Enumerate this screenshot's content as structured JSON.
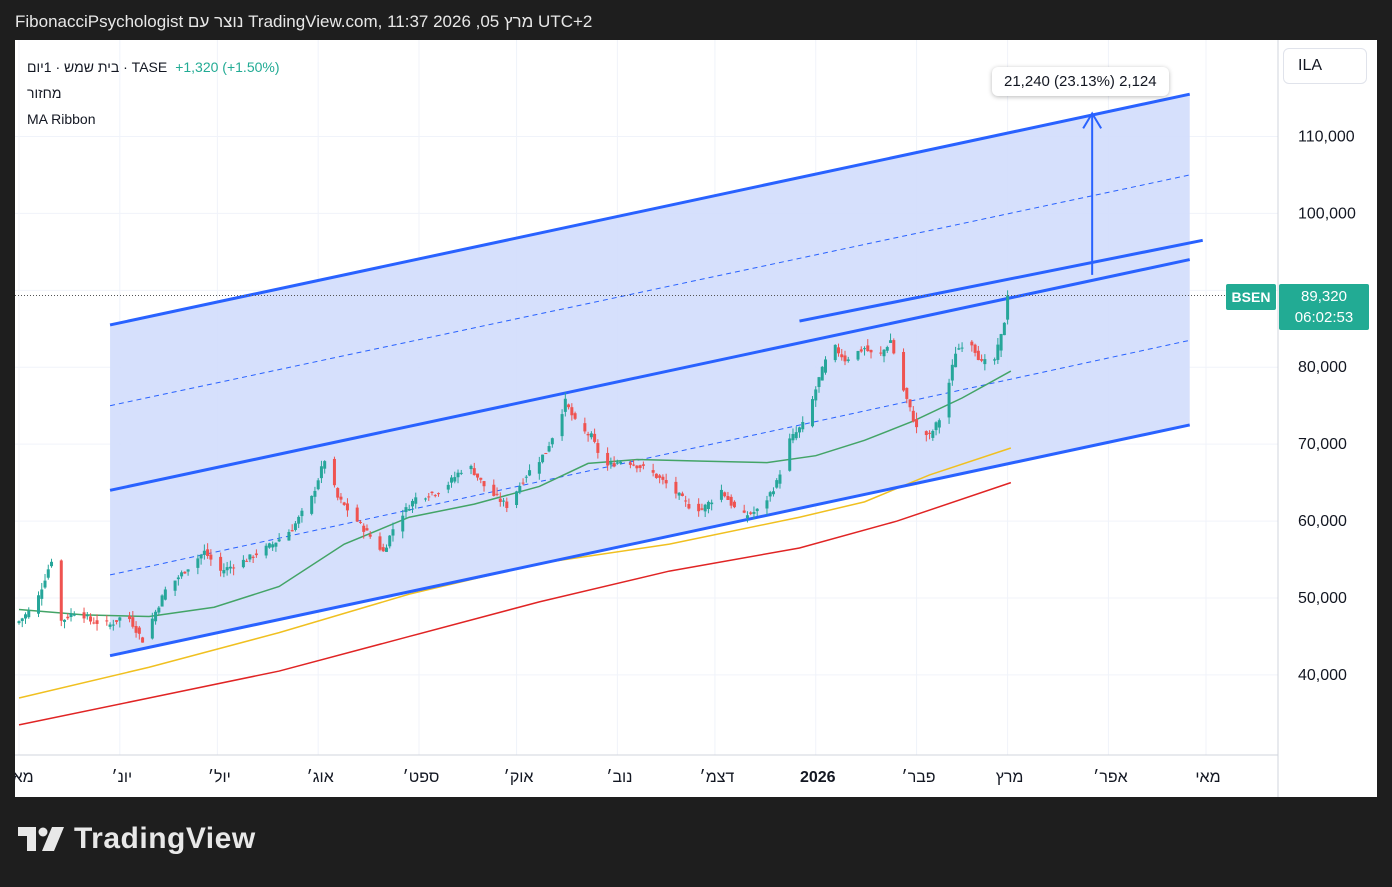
{
  "header": {
    "caption": "FibonacciPsychologist נוצר עם TradingView.com, 11:37 2026 ,05 מרץ UTC+2"
  },
  "legend": {
    "symbol_line": "בית שמש · 1יום · TASE",
    "change": "+1,320 (+1.50%)",
    "volume_label": "מחזור",
    "indicator": "MA Ribbon"
  },
  "currency_button": "ILA",
  "measure_label": "21,240 (23.13%) 2,124",
  "price_tag": {
    "symbol": "BSEN",
    "price": "89,320",
    "countdown": "06:02:53"
  },
  "colors": {
    "up": "#26a69a",
    "down": "#ef5350",
    "channel": "#2962ff",
    "channel_fill": "#d2ddfc",
    "ma_green": "#43a467",
    "ma_yellow": "#f0c020",
    "ma_red": "#e02424"
  },
  "chart_data": {
    "type": "candlestick",
    "yticks": [
      40000,
      50000,
      60000,
      70000,
      80000,
      90000,
      100000,
      110000
    ],
    "ytick_labels": [
      "40,000",
      "50,000",
      "60,000",
      "70,000",
      "80,000",
      "",
      "100,000",
      "110,000"
    ],
    "xticks": [
      {
        "label": "מאי",
        "day": 0,
        "bold": false
      },
      {
        "label": "יונ׳",
        "day": 31,
        "bold": false
      },
      {
        "label": "יול׳",
        "day": 61,
        "bold": false
      },
      {
        "label": "אוג׳",
        "day": 92,
        "bold": false
      },
      {
        "label": "ספט׳",
        "day": 123,
        "bold": false
      },
      {
        "label": "אוק׳",
        "day": 153,
        "bold": false
      },
      {
        "label": "נוב׳",
        "day": 184,
        "bold": false
      },
      {
        "label": "דצמ׳",
        "day": 214,
        "bold": false
      },
      {
        "label": "2026",
        "day": 245,
        "bold": true
      },
      {
        "label": "פבר׳",
        "day": 276,
        "bold": false
      },
      {
        "label": "מרץ",
        "day": 304,
        "bold": false
      },
      {
        "label": "אפר׳",
        "day": 335,
        "bold": false
      },
      {
        "label": "מאי",
        "day": 365,
        "bold": false
      }
    ],
    "last_price": 89320,
    "price_anchors": [
      [
        0,
        47000
      ],
      [
        5,
        49000
      ],
      [
        10,
        55000
      ],
      [
        13,
        47000
      ],
      [
        18,
        48500
      ],
      [
        22,
        47000
      ],
      [
        28,
        46500
      ],
      [
        33,
        48000
      ],
      [
        38,
        44500
      ],
      [
        45,
        51000
      ],
      [
        52,
        54000
      ],
      [
        57,
        56000
      ],
      [
        62,
        53500
      ],
      [
        70,
        55000
      ],
      [
        78,
        57000
      ],
      [
        84,
        59000
      ],
      [
        90,
        63000
      ],
      [
        94,
        68000
      ],
      [
        98,
        63000
      ],
      [
        102,
        61000
      ],
      [
        108,
        58000
      ],
      [
        112,
        56000
      ],
      [
        116,
        60000
      ],
      [
        122,
        63000
      ],
      [
        130,
        64000
      ],
      [
        138,
        67500
      ],
      [
        144,
        64000
      ],
      [
        150,
        62000
      ],
      [
        156,
        66000
      ],
      [
        162,
        69000
      ],
      [
        165,
        72000
      ],
      [
        168,
        75500
      ],
      [
        172,
        72000
      ],
      [
        176,
        71000
      ],
      [
        180,
        67000
      ],
      [
        186,
        68000
      ],
      [
        194,
        66500
      ],
      [
        200,
        64500
      ],
      [
        206,
        62000
      ],
      [
        210,
        61500
      ],
      [
        216,
        64000
      ],
      [
        222,
        60500
      ],
      [
        228,
        61500
      ],
      [
        233,
        65000
      ],
      [
        237,
        70500
      ],
      [
        242,
        73000
      ],
      [
        246,
        78500
      ],
      [
        250,
        83000
      ],
      [
        254,
        81000
      ],
      [
        260,
        82500
      ],
      [
        264,
        81000
      ],
      [
        268,
        83500
      ],
      [
        272,
        77000
      ],
      [
        276,
        72000
      ],
      [
        280,
        71000
      ],
      [
        284,
        74000
      ],
      [
        288,
        82000
      ],
      [
        292,
        84000
      ],
      [
        296,
        80500
      ],
      [
        300,
        81000
      ],
      [
        302,
        84000
      ],
      [
        304,
        88000
      ],
      [
        305,
        89320
      ]
    ],
    "moving_averages": [
      {
        "color": "green",
        "points": [
          [
            0,
            48500
          ],
          [
            20,
            47800
          ],
          [
            40,
            47600
          ],
          [
            60,
            48800
          ],
          [
            80,
            51500
          ],
          [
            100,
            57000
          ],
          [
            120,
            60500
          ],
          [
            140,
            62200
          ],
          [
            160,
            64500
          ],
          [
            175,
            67500
          ],
          [
            190,
            68000
          ],
          [
            210,
            67800
          ],
          [
            230,
            67600
          ],
          [
            245,
            68500
          ],
          [
            260,
            70500
          ],
          [
            275,
            73000
          ],
          [
            290,
            76000
          ],
          [
            305,
            79500
          ]
        ]
      },
      {
        "color": "yellow",
        "points": [
          [
            0,
            37000
          ],
          [
            40,
            41000
          ],
          [
            80,
            45500
          ],
          [
            120,
            50500
          ],
          [
            160,
            54500
          ],
          [
            200,
            57000
          ],
          [
            240,
            60500
          ],
          [
            260,
            62500
          ],
          [
            280,
            66000
          ],
          [
            305,
            69500
          ]
        ]
      },
      {
        "color": "red",
        "points": [
          [
            0,
            33500
          ],
          [
            40,
            37000
          ],
          [
            80,
            40500
          ],
          [
            120,
            45000
          ],
          [
            160,
            49500
          ],
          [
            200,
            53500
          ],
          [
            240,
            56500
          ],
          [
            270,
            60000
          ],
          [
            305,
            65000
          ]
        ]
      }
    ],
    "channel": {
      "upper": [
        [
          28,
          85500
        ],
        [
          360,
          115500
        ]
      ],
      "lower": [
        [
          28,
          42500
        ],
        [
          360,
          72500
        ]
      ],
      "middle_solid": [
        [
          28,
          64000
        ],
        [
          360,
          94000
        ]
      ],
      "extra_solid": [
        [
          240,
          86000
        ],
        [
          364,
          96500
        ]
      ],
      "dashed": [
        [
          [
            28,
            75000
          ],
          [
            360,
            105000
          ]
        ],
        [
          [
            28,
            53000
          ],
          [
            360,
            83500
          ]
        ]
      ]
    },
    "measure_arrow": {
      "day": 330,
      "from": 92000,
      "to": 113000
    }
  }
}
